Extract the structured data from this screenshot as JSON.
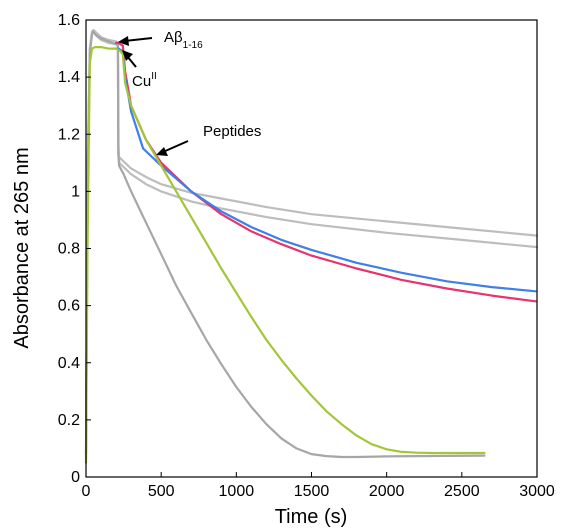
{
  "chart_data": {
    "type": "line",
    "xlabel": "Time (s)",
    "ylabel": "Absorbance at 265 nm",
    "xlim": [
      0,
      3000
    ],
    "ylim": [
      0,
      1.6
    ],
    "x_ticks": [
      0,
      500,
      1000,
      1500,
      2000,
      2500,
      3000
    ],
    "y_ticks": [
      0,
      0.2,
      0.4,
      0.6,
      0.8,
      1,
      1.2,
      1.4,
      1.6
    ],
    "y_tick_labels": [
      "0",
      "0.2",
      "0.4",
      "0.6",
      "0.8",
      "1",
      "1.2",
      "1.4",
      "1.6"
    ],
    "grid": false,
    "annotations": {
      "abeta": {
        "main": "Aβ",
        "sub": "1-16",
        "at": [
          200,
          1.53
        ]
      },
      "cu": {
        "main": "Cu",
        "sup": "II",
        "at": [
          240,
          1.5
        ]
      },
      "peptides": {
        "text": "Peptides",
        "at": [
          430,
          1.12
        ]
      }
    },
    "series": [
      {
        "color": "#bdbdbd",
        "x": [
          0,
          10,
          25,
          40,
          50,
          60,
          100,
          150,
          200,
          212,
          215,
          220,
          250,
          300,
          400,
          500,
          700,
          900,
          1200,
          1500,
          2000,
          2500,
          3000
        ],
        "y": [
          0.08,
          1.05,
          1.5,
          1.56,
          1.565,
          1.56,
          1.54,
          1.53,
          1.525,
          1.52,
          1.16,
          1.12,
          1.105,
          1.08,
          1.05,
          1.025,
          0.995,
          0.975,
          0.945,
          0.92,
          0.895,
          0.87,
          0.845
        ]
      },
      {
        "color": "#bdbdbd",
        "x": [
          0,
          10,
          25,
          40,
          50,
          60,
          100,
          150,
          200,
          213,
          217,
          222,
          250,
          300,
          400,
          500,
          700,
          900,
          1200,
          1500,
          2000,
          2500,
          3000
        ],
        "y": [
          0.08,
          1.05,
          1.5,
          1.555,
          1.56,
          1.55,
          1.53,
          1.52,
          1.515,
          1.51,
          1.12,
          1.1,
          1.085,
          1.06,
          1.025,
          1.0,
          0.965,
          0.94,
          0.91,
          0.885,
          0.855,
          0.83,
          0.805
        ]
      },
      {
        "color": "#a6a6a6",
        "x": [
          0,
          10,
          25,
          40,
          50,
          60,
          100,
          150,
          200,
          212,
          215,
          220,
          250,
          300,
          400,
          500,
          600,
          700,
          800,
          900,
          1000,
          1100,
          1200,
          1300,
          1400,
          1500,
          1600,
          1700,
          1800,
          2000,
          2200,
          2400,
          2650
        ],
        "y": [
          0.06,
          1.0,
          1.48,
          1.55,
          1.56,
          1.55,
          1.535,
          1.525,
          1.515,
          1.51,
          1.13,
          1.09,
          1.06,
          1.0,
          0.89,
          0.78,
          0.67,
          0.575,
          0.48,
          0.395,
          0.315,
          0.245,
          0.185,
          0.135,
          0.1,
          0.08,
          0.073,
          0.07,
          0.07,
          0.072,
          0.073,
          0.074,
          0.075
        ]
      },
      {
        "color": "#e8336b",
        "x": [
          200,
          215,
          230,
          245,
          260,
          300,
          400,
          500,
          700,
          900,
          1100,
          1300,
          1500,
          1800,
          2100,
          2400,
          2700,
          2990
        ],
        "y": [
          1.52,
          1.52,
          1.515,
          1.51,
          1.42,
          1.3,
          1.18,
          1.1,
          1.0,
          0.92,
          0.86,
          0.815,
          0.775,
          0.73,
          0.69,
          0.66,
          0.635,
          0.615
        ]
      },
      {
        "color": "#3f7fe8",
        "x": [
          200,
          215,
          230,
          245,
          260,
          300,
          380,
          500,
          700,
          900,
          1100,
          1300,
          1500,
          1800,
          2100,
          2400,
          2700,
          2990
        ],
        "y": [
          1.5,
          1.5,
          1.495,
          1.49,
          1.4,
          1.28,
          1.15,
          1.09,
          1.0,
          0.93,
          0.875,
          0.83,
          0.795,
          0.75,
          0.715,
          0.685,
          0.665,
          0.65
        ]
      },
      {
        "color": "#a3c639",
        "x": [
          0,
          10,
          25,
          40,
          60,
          100,
          150,
          200,
          215,
          230,
          245,
          260,
          300,
          400,
          500,
          600,
          700,
          800,
          900,
          1000,
          1100,
          1200,
          1300,
          1400,
          1500,
          1600,
          1700,
          1800,
          1900,
          2000,
          2100,
          2200,
          2300,
          2400,
          2500,
          2650
        ],
        "y": [
          0.05,
          0.8,
          1.45,
          1.5,
          1.505,
          1.505,
          1.5,
          1.5,
          1.495,
          1.49,
          1.48,
          1.38,
          1.3,
          1.18,
          1.09,
          1.0,
          0.91,
          0.82,
          0.73,
          0.645,
          0.56,
          0.48,
          0.41,
          0.345,
          0.285,
          0.23,
          0.185,
          0.145,
          0.115,
          0.097,
          0.088,
          0.085,
          0.084,
          0.084,
          0.084,
          0.084
        ]
      }
    ]
  }
}
